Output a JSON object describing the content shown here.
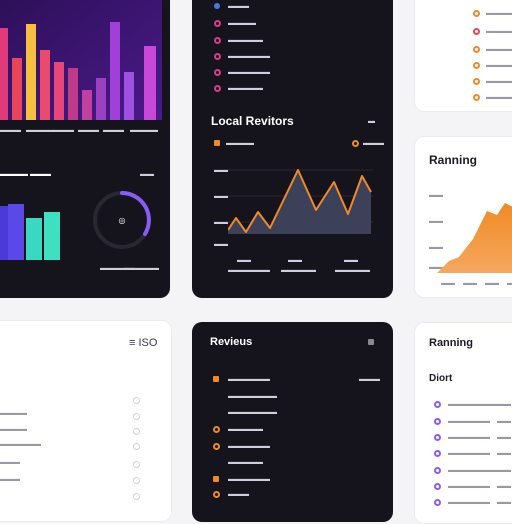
{
  "colors": {
    "dark_bg": "#15131c",
    "orange": "#f08a24",
    "violet": "#8a5cf6",
    "magenta": "#e03a8a",
    "teal": "#3de0c0"
  },
  "bar_panel": {
    "month_labels": [
      "▬▬▬",
      "▬▬▬▬",
      "▬▬▬",
      "▬▬▬",
      "▬▬▬",
      "▬▬▬▬"
    ],
    "section_title": "▬▬▬▬ ▬▬▬",
    "action": "▬▬",
    "legend": [
      "▬▬▬▬▬",
      "▬▬▬▬▬"
    ]
  },
  "menu_panel": {
    "items": [
      "▬▬▬",
      "▬▬▬▬",
      "▬▬▬▬▬",
      "▬▬▬▬▬▬",
      "▬▬▬▬▬▬",
      "▬▬▬▬▬"
    ],
    "icons": [
      "chart-icon",
      "target-icon",
      "target-icon",
      "target-icon",
      "target-icon",
      "target-icon"
    ]
  },
  "local_reviews": {
    "title": "Local Revitors",
    "badge": "▬",
    "legend_left": "▬▬▬▬",
    "legend_right": "▬▬▬",
    "y_ticks": [
      "▬▬",
      "▬▬",
      "▬▬",
      "▬▬"
    ],
    "x_labels": [
      "▬▬",
      "▬▬",
      "▬▬"
    ],
    "x_sublabels": [
      "▬▬▬▬▬▬",
      "▬▬▬▬▬",
      "▬▬▬▬▬"
    ]
  },
  "right_top": {
    "items": [
      "▬▬▬▬▬▬▬▬",
      "▬▬▬▬▬▬▬▬",
      "▬▬▬▬▬▬▬",
      "▬▬▬▬▬▬▬▬",
      "▬▬▬▬▬▬▬▬",
      "▬▬▬▬▬▬▬"
    ]
  },
  "ranking_top": {
    "title": "Ranning",
    "y_ticks": [
      "▬▬",
      "▬▬",
      "▬▬",
      "▬▬"
    ],
    "x_labels": [
      "▬▬",
      "▬▬",
      "▬▬",
      "▬▬"
    ]
  },
  "settings_panel": {
    "header": "≡ ISO",
    "rows": [
      "▬▬▬▬",
      "▬▬▬▬",
      "▬▬▬▬▬▬",
      "▬▬▬",
      "▬▬▬"
    ]
  },
  "reviews_panel": {
    "title": "Revieus",
    "items": [
      "▬▬▬▬▬▬",
      "▬▬▬▬▬▬▬",
      "▬▬▬▬▬▬▬",
      "▬▬▬▬▬",
      "▬▬▬▬▬▬",
      "▬▬▬▬▬",
      "▬▬▬▬▬▬",
      "▬▬▬"
    ],
    "row_value": "▬▬▬"
  },
  "ranking_bottom": {
    "title": "Ranning",
    "subtitle": "Diort",
    "items": [
      "▬▬▬▬▬▬▬",
      "▬▬▬▬▬▬",
      "▬▬▬▬▬▬",
      "▬▬▬▬▬▬",
      "▬▬▬▬▬▬▬",
      "▬▬▬▬▬▬",
      "▬▬▬▬▬▬"
    ],
    "values": [
      "▬▬",
      "▬▬",
      "▬▬",
      "▬▬",
      "▬▬",
      "▬▬",
      "▬▬"
    ]
  }
}
